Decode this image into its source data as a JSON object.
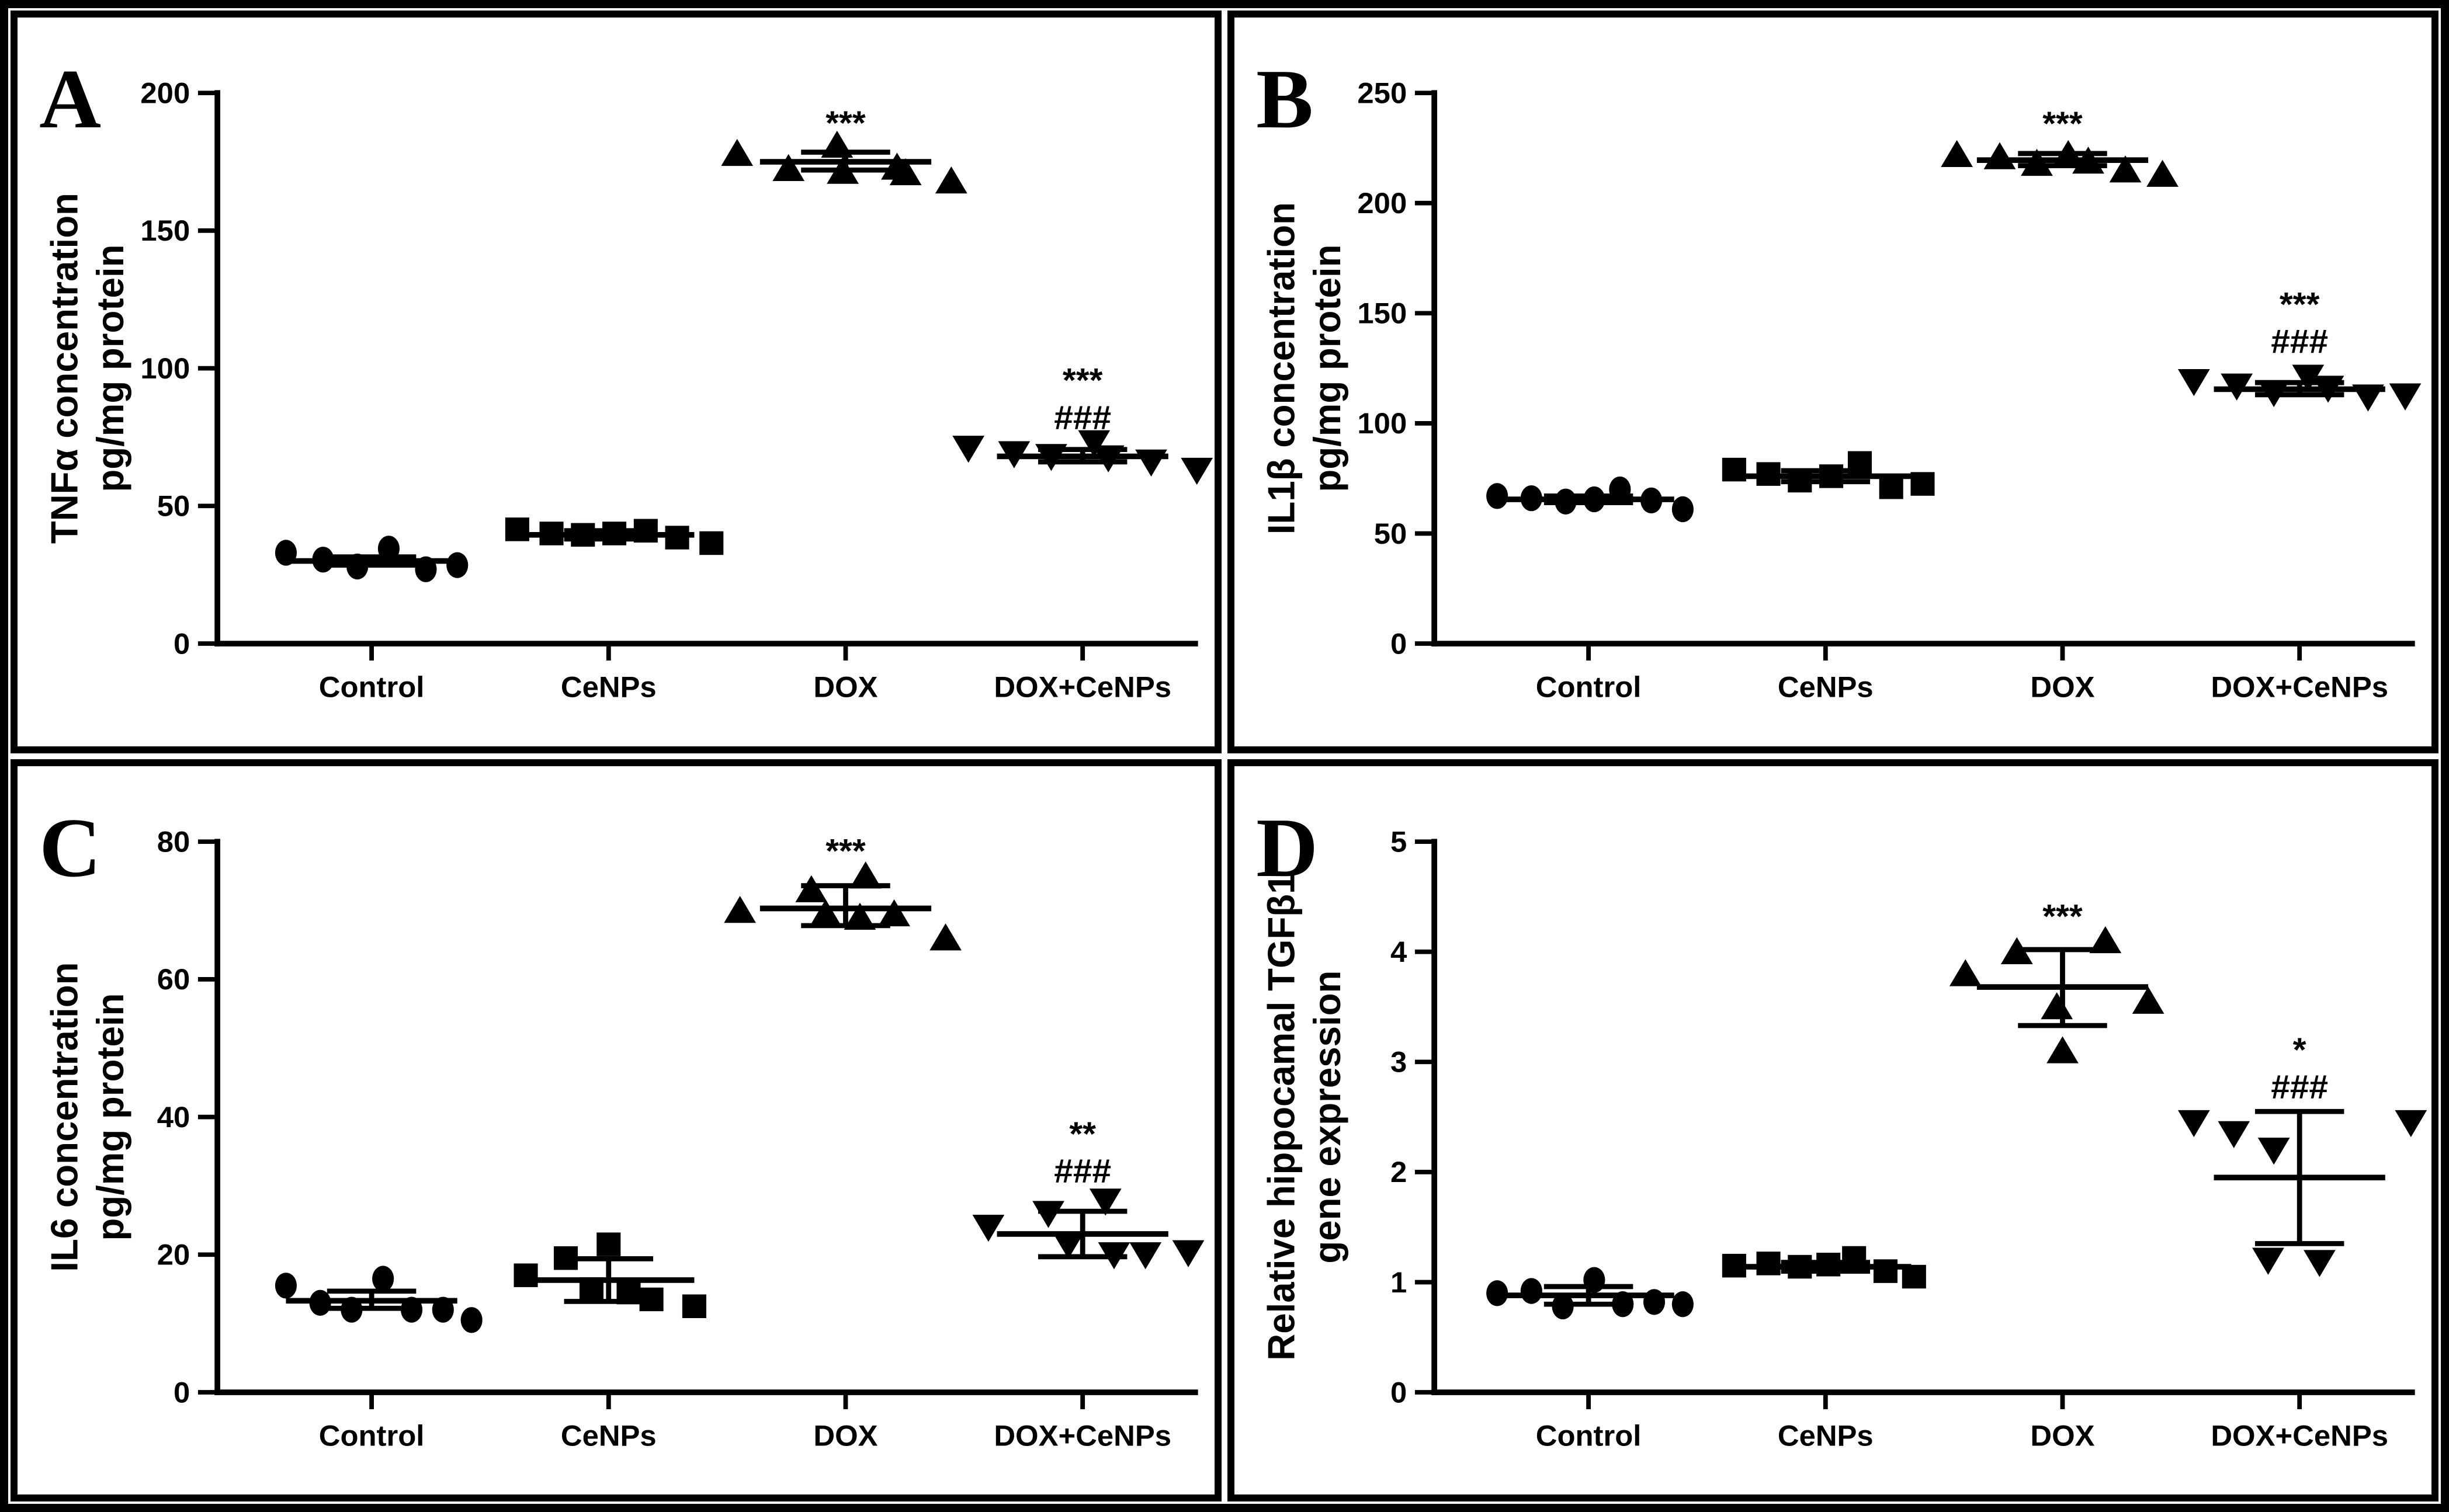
{
  "figure": {
    "background_color": "#ffffff",
    "foreground_color": "#000000",
    "panel_letters": [
      "A",
      "B",
      "C",
      "D"
    ]
  },
  "chart_data": [
    {
      "panel_label": "A",
      "type": "scatter",
      "title": "",
      "ylabel_lines": [
        "TNFα concentration",
        "pg/mg protein"
      ],
      "xlabel": "",
      "grid": false,
      "legend": "none",
      "ylim": [
        0,
        200
      ],
      "yticks": [
        0,
        50,
        100,
        150,
        200
      ],
      "categories": [
        "Control",
        "CeNPs",
        "DOX",
        "DOX+CeNPs"
      ],
      "groups": [
        {
          "category": "Control",
          "marker": "circle",
          "mean": 30,
          "err_low": 28.5,
          "err_high": 31.5,
          "significance": [],
          "sig_y": null,
          "points": [
            [
              -150,
              33
            ],
            [
              -85,
              30.5
            ],
            [
              -25,
              28
            ],
            [
              30,
              34.5
            ],
            [
              95,
              27
            ],
            [
              150,
              28.5
            ]
          ]
        },
        {
          "category": "CeNPs",
          "marker": "square",
          "mean": 39.5,
          "err_low": 38,
          "err_high": 41,
          "significance": [],
          "sig_y": null,
          "points": [
            [
              -160,
              41.5
            ],
            [
              -100,
              40
            ],
            [
              -45,
              39.5
            ],
            [
              10,
              40
            ],
            [
              65,
              41
            ],
            [
              120,
              38.5
            ],
            [
              180,
              36.5
            ]
          ]
        },
        {
          "category": "DOX",
          "marker": "triangle-up",
          "mean": 175,
          "err_low": 172,
          "err_high": 178.5,
          "significance": [
            "***"
          ],
          "sig_y": 185,
          "points": [
            [
              -190,
              178
            ],
            [
              -100,
              172.5
            ],
            [
              -15,
              181
            ],
            [
              -5,
              171.5
            ],
            [
              90,
              173
            ],
            [
              105,
              171
            ],
            [
              185,
              168
            ]
          ]
        },
        {
          "category": "DOX+CeNPs",
          "marker": "triangle-down",
          "mean": 68,
          "err_low": 66,
          "err_high": 70.5,
          "significance": [
            "***",
            "###"
          ],
          "sig_y": 78,
          "points": [
            [
              -200,
              71
            ],
            [
              -120,
              69
            ],
            [
              -55,
              68
            ],
            [
              20,
              73
            ],
            [
              45,
              67.5
            ],
            [
              120,
              66
            ],
            [
              200,
              63
            ]
          ]
        }
      ]
    },
    {
      "panel_label": "B",
      "type": "scatter",
      "title": "",
      "ylabel_lines": [
        "IL1β concentration",
        "pg/mg protein"
      ],
      "xlabel": "",
      "grid": false,
      "legend": "none",
      "ylim": [
        0,
        250
      ],
      "yticks": [
        0,
        50,
        100,
        150,
        200,
        250
      ],
      "categories": [
        "Control",
        "CeNPs",
        "DOX",
        "DOX+CeNPs"
      ],
      "groups": [
        {
          "category": "Control",
          "marker": "circle",
          "mean": 65.5,
          "err_low": 64,
          "err_high": 67,
          "significance": [],
          "sig_y": null,
          "points": [
            [
              -160,
              67
            ],
            [
              -100,
              66
            ],
            [
              -40,
              64.5
            ],
            [
              10,
              65.5
            ],
            [
              55,
              70
            ],
            [
              110,
              65
            ],
            [
              165,
              61
            ]
          ]
        },
        {
          "category": "CeNPs",
          "marker": "square",
          "mean": 76,
          "err_low": 73.5,
          "err_high": 78.5,
          "significance": [],
          "sig_y": null,
          "points": [
            [
              -160,
              79
            ],
            [
              -100,
              77
            ],
            [
              -45,
              74
            ],
            [
              10,
              76
            ],
            [
              60,
              82
            ],
            [
              115,
              71
            ],
            [
              170,
              72.5
            ]
          ]
        },
        {
          "category": "DOX",
          "marker": "triangle-up",
          "mean": 219.5,
          "err_low": 217,
          "err_high": 222.5,
          "significance": [
            "***"
          ],
          "sig_y": 231,
          "points": [
            [
              -185,
              222
            ],
            [
              -110,
              221
            ],
            [
              -45,
              218
            ],
            [
              10,
              222
            ],
            [
              45,
              219
            ],
            [
              110,
              215
            ],
            [
              175,
              213
            ]
          ]
        },
        {
          "category": "DOX+CeNPs",
          "marker": "triangle-down",
          "mean": 115.5,
          "err_low": 113,
          "err_high": 118.5,
          "significance": [
            "***",
            "###"
          ],
          "sig_y": 132,
          "points": [
            [
              -185,
              119
            ],
            [
              -110,
              117
            ],
            [
              -45,
              114
            ],
            [
              15,
              121
            ],
            [
              50,
              116
            ],
            [
              120,
              112
            ],
            [
              185,
              112.5
            ]
          ]
        }
      ]
    },
    {
      "panel_label": "C",
      "type": "scatter",
      "title": "",
      "ylabel_lines": [
        "IL6 concentration",
        "pg/mg protein"
      ],
      "xlabel": "",
      "grid": false,
      "legend": "none",
      "ylim": [
        0,
        80
      ],
      "yticks": [
        0,
        20,
        40,
        60,
        80
      ],
      "categories": [
        "Control",
        "CeNPs",
        "DOX",
        "DOX+CeNPs"
      ],
      "groups": [
        {
          "category": "Control",
          "marker": "circle",
          "mean": 13.3,
          "err_low": 12.2,
          "err_high": 14.7,
          "significance": [],
          "sig_y": null,
          "points": [
            [
              -150,
              15.5
            ],
            [
              -90,
              13
            ],
            [
              -35,
              12
            ],
            [
              20,
              16.5
            ],
            [
              70,
              12
            ],
            [
              125,
              12
            ],
            [
              175,
              10.5
            ]
          ]
        },
        {
          "category": "CeNPs",
          "marker": "square",
          "mean": 16.3,
          "err_low": 13.2,
          "err_high": 19.4,
          "significance": [],
          "sig_y": null,
          "points": [
            [
              -145,
              17
            ],
            [
              -75,
              19.5
            ],
            [
              0,
              21.5
            ],
            [
              -30,
              15
            ],
            [
              35,
              14.5
            ],
            [
              75,
              13.5
            ],
            [
              150,
              12.5
            ]
          ]
        },
        {
          "category": "DOX",
          "marker": "triangle-up",
          "mean": 70.3,
          "err_low": 67.8,
          "err_high": 73.6,
          "significance": [
            "***"
          ],
          "sig_y": 77,
          "points": [
            [
              -185,
              70
            ],
            [
              -60,
              73
            ],
            [
              35,
              75
            ],
            [
              -35,
              69.5
            ],
            [
              25,
              69
            ],
            [
              85,
              69.5
            ],
            [
              175,
              66
            ]
          ]
        },
        {
          "category": "DOX+CeNPs",
          "marker": "triangle-down",
          "mean": 23,
          "err_low": 19.7,
          "err_high": 26.3,
          "significance": [
            "**",
            "###"
          ],
          "sig_y": 30.5,
          "points": [
            [
              -165,
              24
            ],
            [
              -60,
              26
            ],
            [
              40,
              27.8
            ],
            [
              -25,
              21.5
            ],
            [
              55,
              20
            ],
            [
              110,
              20
            ],
            [
              185,
              20.3
            ]
          ]
        }
      ]
    },
    {
      "panel_label": "D",
      "type": "scatter",
      "title": "",
      "ylabel_lines": [
        "Relative hippocamal TGFβ1",
        "gene expression"
      ],
      "xlabel": "",
      "grid": false,
      "legend": "none",
      "ylim": [
        0,
        5
      ],
      "yticks": [
        0,
        1,
        2,
        3,
        4,
        5
      ],
      "categories": [
        "Control",
        "CeNPs",
        "DOX",
        "DOX+CeNPs"
      ],
      "groups": [
        {
          "category": "Control",
          "marker": "circle",
          "mean": 0.88,
          "err_low": 0.8,
          "err_high": 0.96,
          "significance": [],
          "sig_y": null,
          "points": [
            [
              -160,
              0.9
            ],
            [
              -100,
              0.92
            ],
            [
              -45,
              0.78
            ],
            [
              10,
              1.02
            ],
            [
              60,
              0.8
            ],
            [
              115,
              0.82
            ],
            [
              165,
              0.8
            ]
          ]
        },
        {
          "category": "CeNPs",
          "marker": "square",
          "mean": 1.14,
          "err_low": 1.1,
          "err_high": 1.18,
          "significance": [],
          "sig_y": null,
          "points": [
            [
              -160,
              1.15
            ],
            [
              -100,
              1.17
            ],
            [
              -45,
              1.14
            ],
            [
              5,
              1.16
            ],
            [
              50,
              1.22
            ],
            [
              105,
              1.1
            ],
            [
              155,
              1.05
            ]
          ]
        },
        {
          "category": "DOX",
          "marker": "triangle-up",
          "mean": 3.68,
          "err_low": 3.33,
          "err_high": 4.02,
          "significance": [
            "***"
          ],
          "sig_y": 4.22,
          "points": [
            [
              -170,
              3.8
            ],
            [
              -80,
              4.0
            ],
            [
              75,
              4.1
            ],
            [
              -10,
              3.5
            ],
            [
              150,
              3.55
            ],
            [
              0,
              3.1
            ]
          ]
        },
        {
          "category": "DOX+CeNPs",
          "marker": "triangle-down",
          "mean": 1.95,
          "err_low": 1.35,
          "err_high": 2.55,
          "significance": [
            "*",
            "###"
          ],
          "sig_y": 2.67,
          "points": [
            [
              -185,
              2.45
            ],
            [
              -115,
              2.35
            ],
            [
              -45,
              2.2
            ],
            [
              195,
              2.45
            ],
            [
              -55,
              1.2
            ],
            [
              35,
              1.18
            ]
          ]
        }
      ]
    }
  ]
}
